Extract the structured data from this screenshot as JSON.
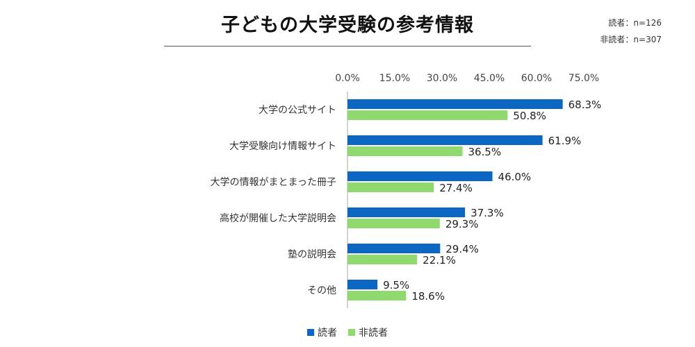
{
  "title": "子どもの大学受験の参考情報",
  "sample_sizes": [
    "読者：n=126",
    "非読者：n=307"
  ],
  "colors": {
    "series_0": "#0b67c2",
    "series_1": "#8fd96e",
    "axis": "#aaaaaa"
  },
  "chart_data": {
    "type": "bar",
    "orientation": "horizontal",
    "title": "子どもの大学受験の参考情報",
    "categories": [
      "大学の公式サイト",
      "大学受験向け情報サイト",
      "大学の情報がまとまった冊子",
      "高校が開催した大学説明会",
      "塾の説明会",
      "その他"
    ],
    "series": [
      {
        "name": "読者",
        "values": [
          68.3,
          61.9,
          46.0,
          37.3,
          29.4,
          9.5
        ]
      },
      {
        "name": "非読者",
        "values": [
          50.8,
          36.5,
          27.4,
          29.3,
          22.1,
          18.6
        ]
      }
    ],
    "xlim": [
      0,
      75
    ],
    "xticks": [
      "0.0%",
      "15.0%",
      "30.0%",
      "45.0%",
      "60.0%",
      "75.0%"
    ],
    "data_labels": [
      [
        "68.3%",
        "61.9%",
        "46.0%",
        "37.3%",
        "29.4%",
        "9.5%"
      ],
      [
        "50.8%",
        "36.5%",
        "27.4%",
        "29.3%",
        "22.1%",
        "18.6%"
      ]
    ],
    "tick_position": "top",
    "grid": false,
    "legend_position": "bottom"
  }
}
